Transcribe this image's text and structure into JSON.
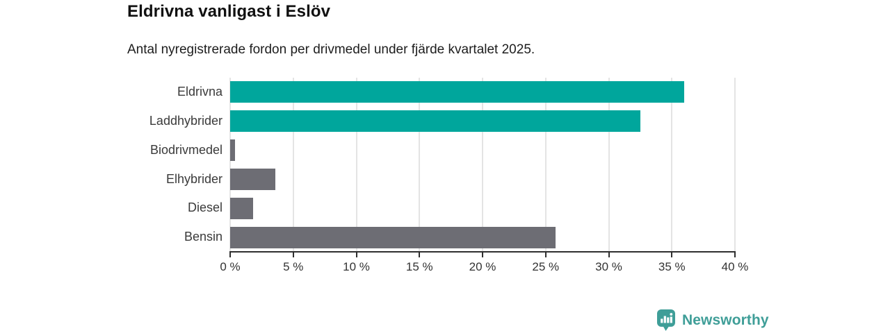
{
  "header": {
    "title": "Eldrivna vanligast i Eslöv",
    "subtitle": "Antal nyregistrerade fordon per drivmedel under fjärde kvartalet 2025."
  },
  "chart_data": {
    "type": "bar",
    "orientation": "horizontal",
    "title": "Eldrivna vanligast i Eslöv",
    "subtitle": "Antal nyregistrerade fordon per drivmedel under fjärde kvartalet 2025.",
    "categories": [
      "Eldrivna",
      "Laddhybrider",
      "Biodrivmedel",
      "Elhybrider",
      "Diesel",
      "Bensin"
    ],
    "values": [
      36.0,
      32.5,
      0.4,
      3.6,
      1.8,
      25.8
    ],
    "unit": "%",
    "xlabel": "",
    "ylabel": "",
    "xlim": [
      0,
      40
    ],
    "x_ticks": [
      0,
      5,
      10,
      15,
      20,
      25,
      30,
      35,
      40
    ],
    "x_tick_labels": [
      "0 %",
      "5 %",
      "10 %",
      "15 %",
      "20 %",
      "25 %",
      "30 %",
      "35 %",
      "40 %"
    ],
    "grid": true,
    "gridline_color": "#e4e4e4",
    "axis_color": "#2e2e2e",
    "highlight_color": "#00a69c",
    "default_color": "#6d6d74",
    "bar_colors": [
      "#00a69c",
      "#00a69c",
      "#6d6d74",
      "#6d6d74",
      "#6d6d74",
      "#6d6d74"
    ],
    "legend": "none"
  },
  "footer": {
    "brand": "Newsworthy",
    "brand_color": "#3f9e98",
    "logo_icon": "bar-chart-badge-icon"
  }
}
